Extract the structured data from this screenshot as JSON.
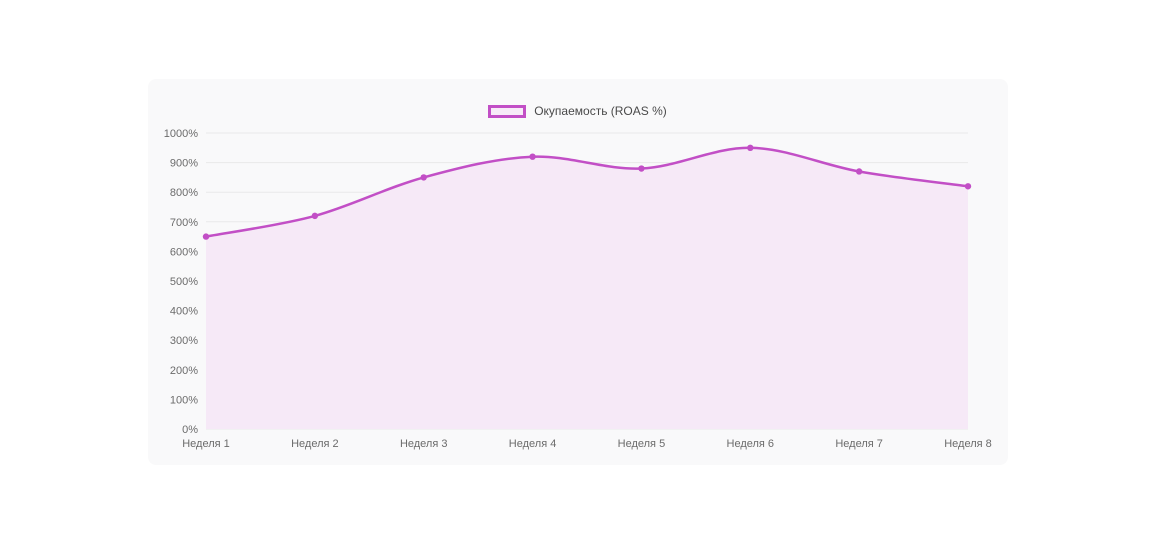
{
  "card": {
    "background": "#f9f9fa"
  },
  "legend": {
    "label": "Окупаемость (ROAS %)",
    "swatch_border_color": "#c24fc6",
    "swatch_fill_color": "#f7ebf8"
  },
  "chart_data": {
    "type": "line",
    "title": "",
    "categories": [
      "Неделя 1",
      "Неделя 2",
      "Неделя 3",
      "Неделя 4",
      "Неделя 5",
      "Неделя 6",
      "Неделя 7",
      "Неделя 8"
    ],
    "series": [
      {
        "name": "Окупаемость (ROAS %)",
        "values": [
          650,
          720,
          850,
          920,
          880,
          950,
          870,
          820
        ],
        "line_color": "#c24fc6",
        "fill_color": "#f6e9f7",
        "point_color": "#c24fc6"
      }
    ],
    "ylim": [
      0,
      1000
    ],
    "ytick_step": 100,
    "ytick_labels": [
      "0%",
      "100%",
      "200%",
      "300%",
      "400%",
      "500%",
      "600%",
      "700%",
      "800%",
      "900%",
      "1000%"
    ],
    "grid": true,
    "grid_color": "#e9e9e9",
    "axis_color": "#e0e0e0",
    "legend_position": "top",
    "xlabel": "",
    "ylabel": ""
  }
}
